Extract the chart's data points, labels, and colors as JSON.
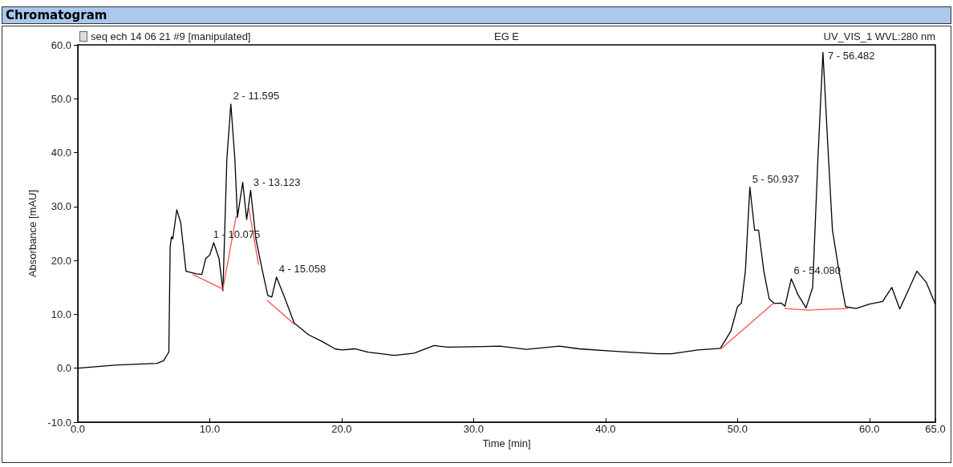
{
  "chart_data": {
    "type": "line",
    "title": "Chromatogram",
    "subtitle": "seq ech 14 06 21 #9 [manipulated]",
    "xlabel": "Time [min]",
    "ylabel": "Absorbance [mAU]",
    "xlim": [
      0,
      65
    ],
    "ylim": [
      -10,
      60
    ],
    "xticks": [
      {
        "value": 0,
        "label": "0.0"
      },
      {
        "value": 10,
        "label": "10.0"
      },
      {
        "value": 20,
        "label": "20.0"
      },
      {
        "value": 30,
        "label": "30.0"
      },
      {
        "value": 40,
        "label": "40.0"
      },
      {
        "value": 50,
        "label": "50.0"
      },
      {
        "value": 60,
        "label": "60.0"
      },
      {
        "value": 65,
        "label": "65.0"
      }
    ],
    "yticks": [
      {
        "value": -10,
        "label": "-10.0"
      },
      {
        "value": 0,
        "label": "0.0"
      },
      {
        "value": 10,
        "label": "10.0"
      },
      {
        "value": 20,
        "label": "20.0"
      },
      {
        "value": 30,
        "label": "30.0"
      },
      {
        "value": 40,
        "label": "40.0"
      },
      {
        "value": 50,
        "label": "50.0"
      },
      {
        "value": 60,
        "label": "60.0"
      }
    ],
    "grid": false,
    "marker": "none",
    "line_style": "solid",
    "series": [
      {
        "color": "#000000",
        "x": [
          0,
          3,
          6,
          6.5,
          6.9,
          7.0,
          7.1,
          7.2,
          7.5,
          7.8,
          8.2,
          9.0,
          9.4,
          9.7,
          10.0,
          10.3,
          10.7,
          11.0,
          11.3,
          11.6,
          11.9,
          12.1,
          12.5,
          12.8,
          13.1,
          13.5,
          14.0,
          14.4,
          14.7,
          15.06,
          15.6,
          16.4,
          17.5,
          18.5,
          19.5,
          20,
          21,
          22,
          24,
          25.5,
          27,
          28,
          30,
          32,
          34,
          36.5,
          38,
          41,
          44,
          45,
          47,
          48.7,
          49.5,
          50.0,
          50.3,
          50.6,
          50.94,
          51.3,
          51.6,
          52.0,
          52.4,
          52.8,
          53.3,
          53.6,
          54.08,
          54.6,
          55.2,
          55.7,
          56.1,
          56.48,
          56.9,
          57.2,
          57.7,
          58.2,
          59,
          60,
          61,
          61.7,
          62.3,
          62.9,
          63.6,
          64.3,
          65
        ],
        "values": [
          0,
          0.6,
          0.9,
          1.4,
          3,
          22.6,
          24.4,
          24,
          29.4,
          27,
          18,
          17.5,
          17.4,
          20.4,
          21,
          23.3,
          20.4,
          14.4,
          39,
          49,
          39,
          28,
          34.5,
          27.6,
          33,
          24,
          18,
          13.5,
          13.2,
          16.9,
          13.6,
          8.4,
          6.2,
          5,
          3.6,
          3.4,
          3.6,
          3,
          2.4,
          2.8,
          4.2,
          3.9,
          4.0,
          4.1,
          3.5,
          4.1,
          3.6,
          3.1,
          2.7,
          2.7,
          3.4,
          3.7,
          6.9,
          11.4,
          12.1,
          18,
          33.6,
          25.6,
          25.6,
          18,
          12.9,
          12,
          12.1,
          11.5,
          16.6,
          13.6,
          11.2,
          15,
          39,
          58.6,
          39,
          25.6,
          18,
          11.4,
          11.1,
          11.9,
          12.4,
          15,
          11,
          14.2,
          18,
          16,
          11.9
        ]
      },
      {
        "color": "#ff5050",
        "x": [
          8.7,
          11.0,
          12.0
        ],
        "values": [
          17.4,
          14.7,
          28.2
        ]
      },
      {
        "color": "#ff5050",
        "x": [
          12.95,
          13.7
        ],
        "values": [
          29.9,
          19.2
        ]
      },
      {
        "color": "#ff5050",
        "x": [
          14.35,
          16.45
        ],
        "values": [
          12.6,
          8.1
        ]
      },
      {
        "color": "#ff5050",
        "x": [
          48.75,
          52.7
        ],
        "values": [
          3.6,
          12.0
        ]
      },
      {
        "color": "#ff5050",
        "x": [
          53.55,
          55.4,
          58.4
        ],
        "values": [
          11.1,
          10.8,
          11.1
        ]
      }
    ],
    "annotations": [
      "EG E",
      "UV_VIS_1 WVL:280 nm",
      {
        "text": "1 - 10.075",
        "x": 10.075,
        "y": 23.3
      },
      {
        "text": "2 - 11.595",
        "x": 11.595,
        "y": 49
      },
      {
        "text": "3 - 13.123",
        "x": 13.123,
        "y": 33
      },
      {
        "text": "4 - 15.058",
        "x": 15.058,
        "y": 16.9
      },
      {
        "text": "5 - 50.937",
        "x": 50.937,
        "y": 33.6
      },
      {
        "text": "6 - 54.080",
        "x": 54.08,
        "y": 16.6
      },
      {
        "text": "7 - 56.482",
        "x": 56.482,
        "y": 58.6
      }
    ]
  }
}
